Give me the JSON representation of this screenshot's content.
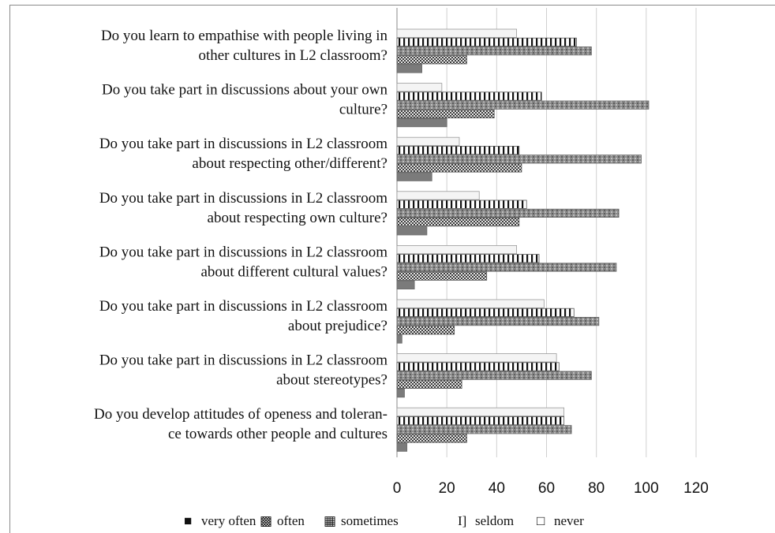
{
  "chart_data": {
    "type": "bar",
    "orientation": "horizontal",
    "title": "",
    "xlabel": "",
    "ylabel": "",
    "xlim": [
      0,
      120
    ],
    "xticks": [
      "0",
      "20",
      "40",
      "60",
      "80",
      "100",
      "120"
    ],
    "grid": true,
    "legend_position": "bottom",
    "categories": [
      [
        "Do you learn to empathise with people living in",
        "other cultures in L2 classroom?"
      ],
      [
        "Do you take part in discussions about your own",
        "culture?"
      ],
      [
        "Do you take part in discussions in L2 classroom",
        "about respecting  other/different?"
      ],
      [
        "Do you take part in discussions in L2 classroom",
        "about respecting own culture?"
      ],
      [
        "Do you take part in discussions in L2 classroom",
        "about different cultural values?"
      ],
      [
        "Do you take part in discussions in L2 classroom",
        "about prejudice?"
      ],
      [
        "Do you take part in discussions in L2 classroom",
        "about stereotypes?"
      ],
      [
        "Do you develop attitudes of openess and toleran-",
        "ce towards other people and cultures"
      ]
    ],
    "series": [
      {
        "name": "never",
        "values": [
          48,
          18,
          25,
          33,
          48,
          59,
          64,
          67
        ]
      },
      {
        "name": "seldom",
        "values": [
          72,
          58,
          49,
          52,
          57,
          71,
          65,
          67
        ]
      },
      {
        "name": "sometimes",
        "values": [
          78,
          101,
          98,
          89,
          88,
          81,
          78,
          70
        ]
      },
      {
        "name": "often",
        "values": [
          28,
          39,
          50,
          49,
          36,
          23,
          26,
          28
        ]
      },
      {
        "name": "very often",
        "values": [
          10,
          20,
          14,
          12,
          7,
          2,
          3,
          4
        ]
      }
    ],
    "legend_order": [
      "very often",
      "often",
      "sometimes",
      "seldom",
      "never"
    ],
    "legend_glyphs": {
      "very often": "■",
      "often": "▩",
      "sometimes": "▦",
      "seldom": "I]",
      "never": "□"
    }
  }
}
